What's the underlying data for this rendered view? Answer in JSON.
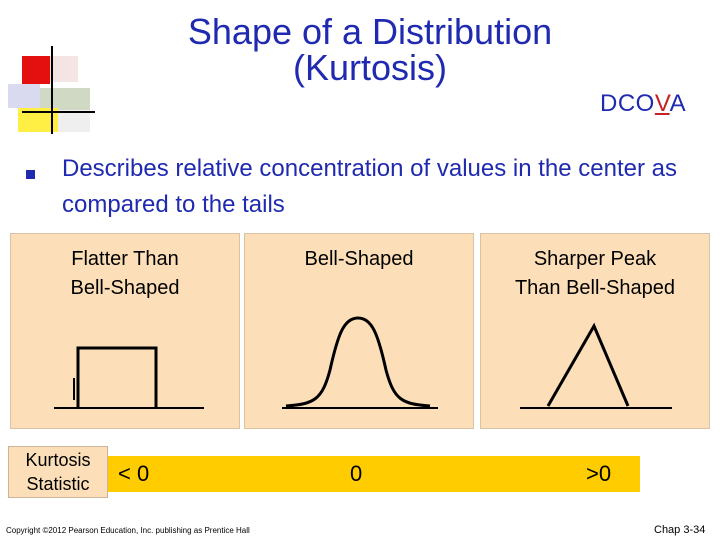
{
  "title": "Shape of a Distribution (Kurtosis)",
  "title_line1": "Shape of a Distribution",
  "title_line2": "(Kurtosis)",
  "dcova": {
    "prefix": "DCO",
    "highlight": "V",
    "suffix": "A"
  },
  "bullet": "Describes relative concentration of values in the center as compared to the tails",
  "panels": [
    {
      "label_line1": "Flatter Than",
      "label_line2": "Bell-Shaped",
      "shape": "flat"
    },
    {
      "label_line1": "Bell-Shaped",
      "label_line2": "",
      "shape": "bell"
    },
    {
      "label_line1": "Sharper Peak",
      "label_line2": "Than Bell-Shaped",
      "shape": "peak"
    }
  ],
  "kurtosis_label_line1": "Kurtosis",
  "kurtosis_label_line2": "Statistic",
  "statistics": [
    "< 0",
    "0",
    ">0"
  ],
  "footer": {
    "copyright": "Copyright ©2012 Pearson Education, Inc. publishing as Prentice Hall",
    "page": "Chap 3-34"
  },
  "colors": {
    "title": "#1f2ab0",
    "highlight": "#c62020",
    "panel": "#fcdfb8",
    "bar": "#ffcc00"
  }
}
